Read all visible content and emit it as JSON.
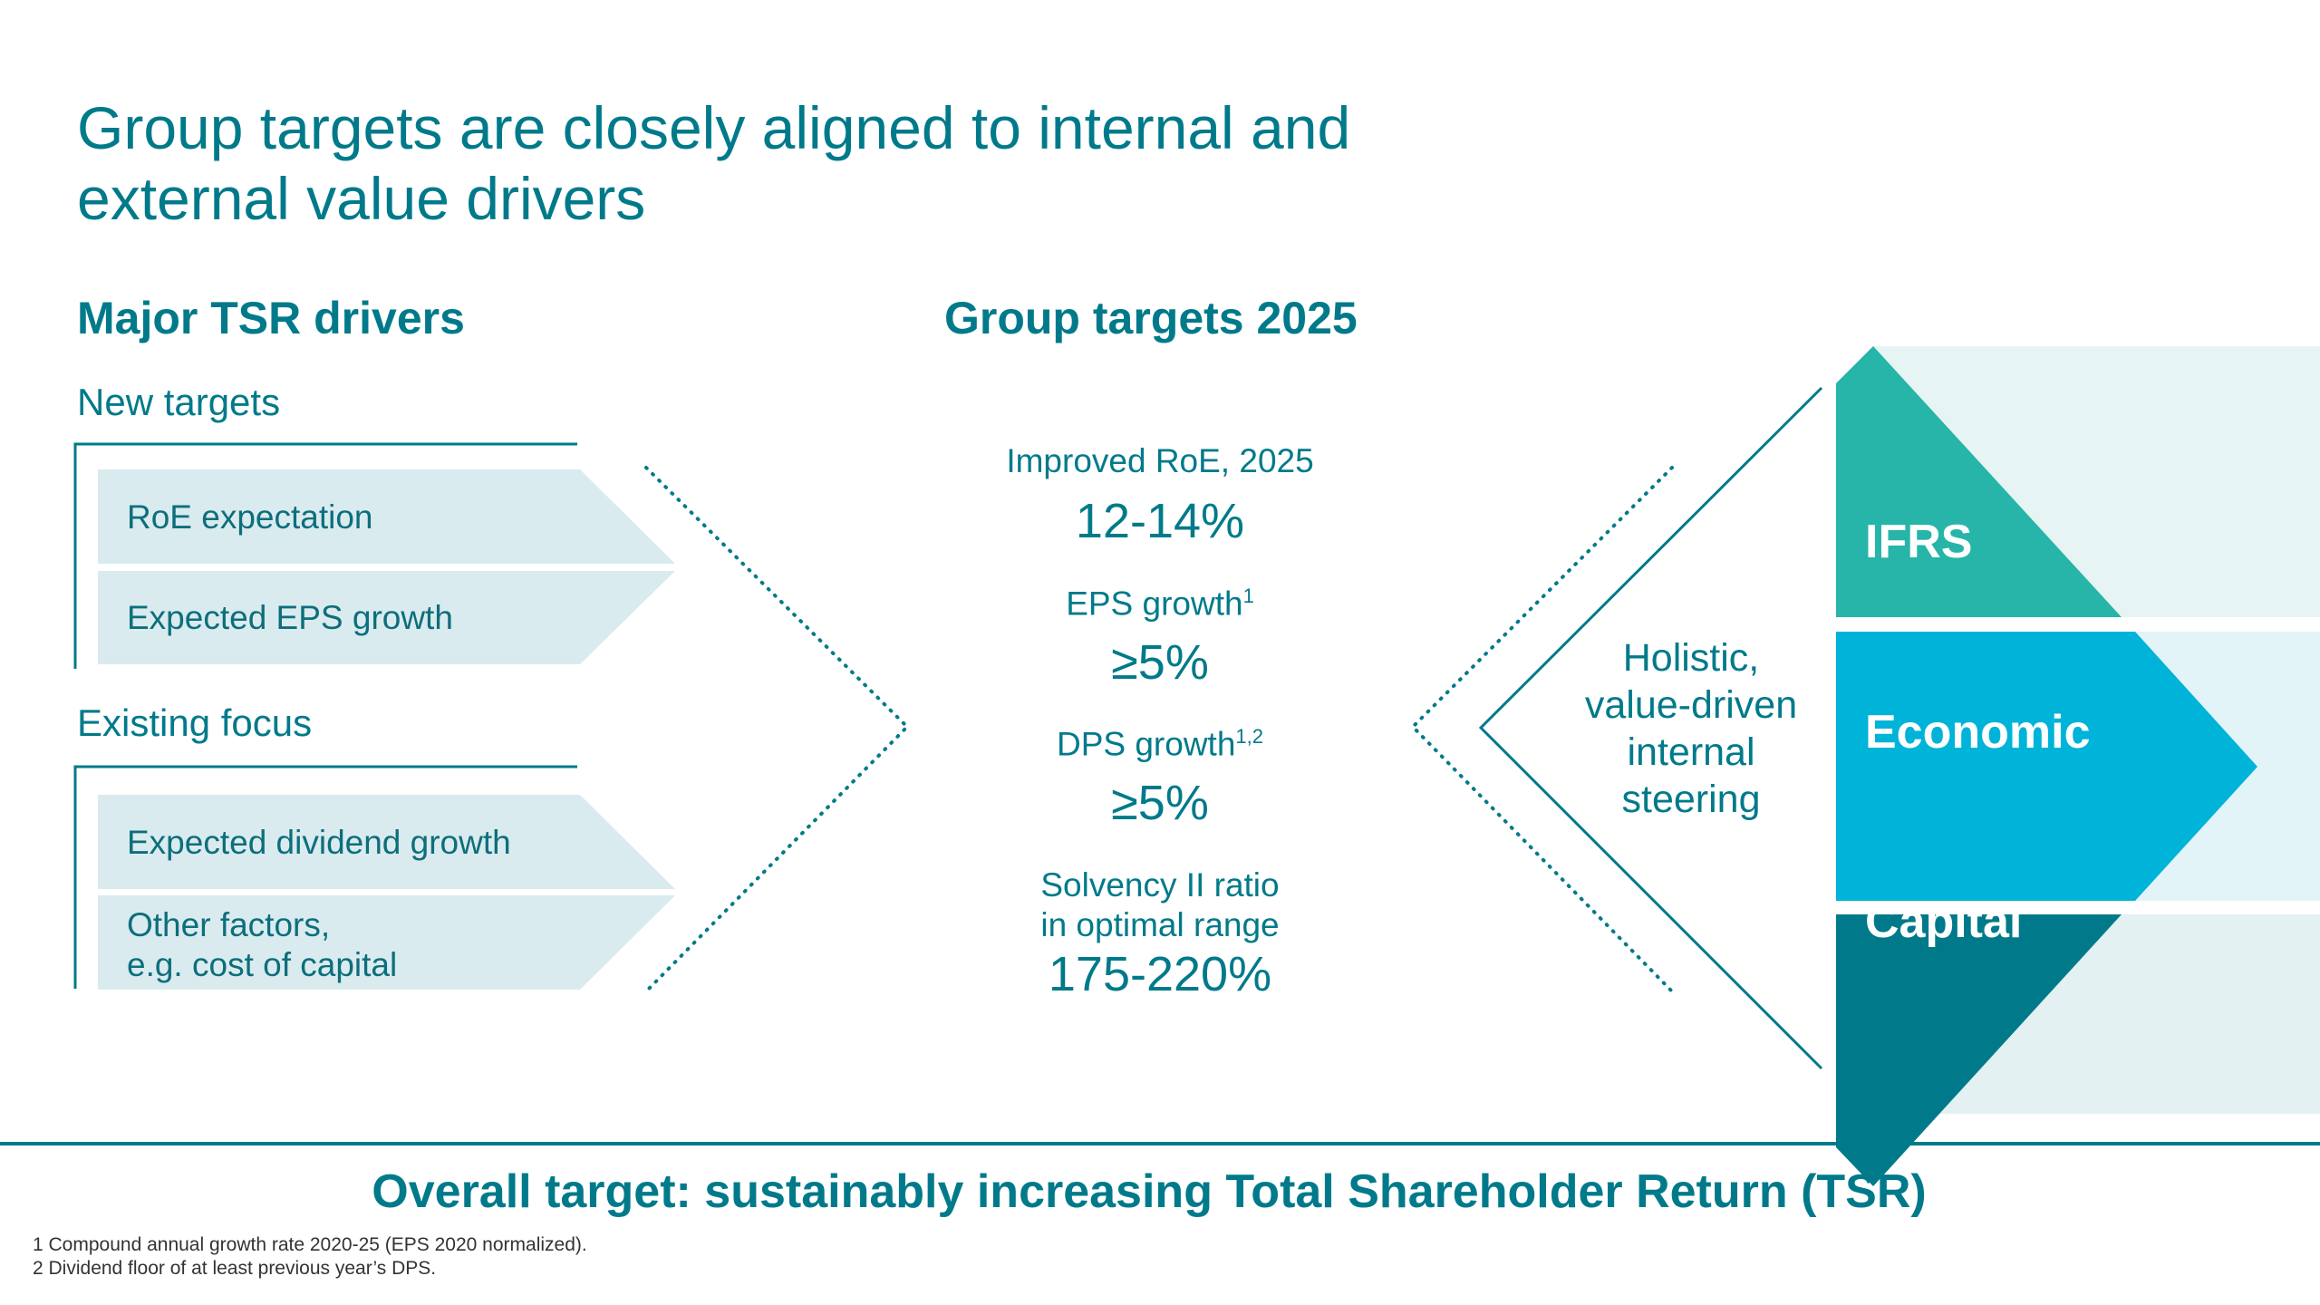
{
  "title": "Group targets are closely aligned to internal and external value drivers",
  "left": {
    "heading": "Major TSR drivers",
    "groups": [
      {
        "label": "New targets",
        "items": [
          "RoE expectation",
          "Expected EPS growth"
        ]
      },
      {
        "label": "Existing focus",
        "items": [
          "Expected dividend growth",
          "Other factors,\ne.g. cost of capital"
        ]
      }
    ]
  },
  "center": {
    "heading": "Group targets 2025",
    "targets": [
      {
        "label": "Improved RoE, 2025",
        "sup": "",
        "value": "12-14%"
      },
      {
        "label": "EPS growth",
        "sup": "1",
        "value": "≥5%"
      },
      {
        "label": "DPS growth",
        "sup": "1,2",
        "value": "≥5%"
      },
      {
        "label": "Solvency II ratio\nin optimal range",
        "sup": "",
        "value": "175-220%"
      }
    ]
  },
  "right": {
    "steering_text": "Holistic,\nvalue-driven\ninternal\nsteering",
    "segments": [
      {
        "label": "IFRS",
        "color": "#26b5a8"
      },
      {
        "label": "Economic",
        "color": "#00b3d9"
      },
      {
        "label": "Capital",
        "color": "#007a8a"
      }
    ]
  },
  "overall_target": "Overall target: sustainably increasing Total Shareholder Return (TSR)",
  "footnotes": [
    "1 Compound annual growth rate 2020-25 (EPS 2020 normalized).",
    "2 Dividend floor of at least previous year’s DPS."
  ],
  "colors": {
    "primary": "#007a8a",
    "box": "#d9ebee"
  }
}
